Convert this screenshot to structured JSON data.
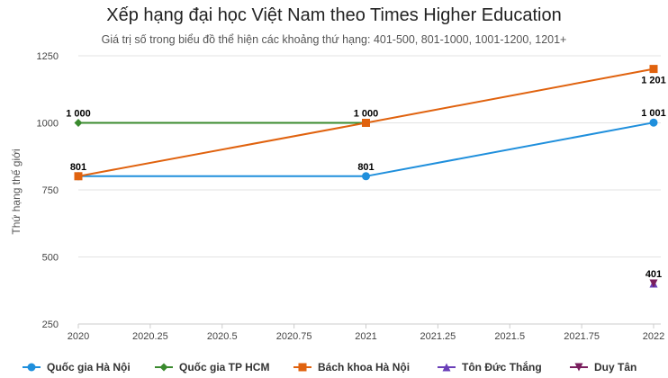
{
  "chart_data": {
    "type": "line",
    "title": "Xếp hạng đại học Việt Nam theo Times Higher Education",
    "subtitle": "Giá trị số trong biểu đồ thể hiện các khoảng thứ hạng: 401-500, 801-1000, 1001-1200, 1201+",
    "ylabel": "Thứ hạng thế giới",
    "xlabel": "",
    "xlim": [
      2020,
      2022
    ],
    "ylim": [
      250,
      1250
    ],
    "x_ticks": [
      "2020",
      "2020.25",
      "2020.5",
      "2020.75",
      "2021",
      "2021.25",
      "2021.5",
      "2021.75",
      "2022"
    ],
    "y_ticks": [
      "250",
      "500",
      "750",
      "1000",
      "1250"
    ],
    "grid": "horizontal",
    "legend_position": "bottom",
    "series": [
      {
        "name": "Quốc gia Hà Nội",
        "color": "#1f8fdc",
        "marker": "circle",
        "points": [
          {
            "x": 2020,
            "y": 801,
            "label": "",
            "label_pos": "none"
          },
          {
            "x": 2021,
            "y": 801,
            "label": "801",
            "label_pos": "above"
          },
          {
            "x": 2022,
            "y": 1001,
            "label": "1 001",
            "label_pos": "above"
          }
        ]
      },
      {
        "name": "Quốc gia TP HCM",
        "color": "#3a8a2e",
        "marker": "diamond",
        "points": [
          {
            "x": 2020,
            "y": 1000,
            "label": "1 000",
            "label_pos": "above"
          },
          {
            "x": 2021,
            "y": 1000,
            "label": "",
            "label_pos": "none"
          }
        ]
      },
      {
        "name": "Bách khoa Hà Nội",
        "color": "#e0620e",
        "marker": "square",
        "points": [
          {
            "x": 2020,
            "y": 801,
            "label": "801",
            "label_pos": "above"
          },
          {
            "x": 2021,
            "y": 1000,
            "label": "1 000",
            "label_pos": "above"
          },
          {
            "x": 2022,
            "y": 1201,
            "label": "1 201",
            "label_pos": "below"
          }
        ]
      },
      {
        "name": "Tôn Đức Thắng",
        "color": "#6a3fb8",
        "marker": "triangle",
        "points": [
          {
            "x": 2022,
            "y": 401,
            "label": "",
            "label_pos": "none"
          }
        ]
      },
      {
        "name": "Duy Tân",
        "color": "#7a1f5e",
        "marker": "triangle-down",
        "points": [
          {
            "x": 2022,
            "y": 401,
            "label": "401",
            "label_pos": "above"
          }
        ]
      }
    ]
  }
}
